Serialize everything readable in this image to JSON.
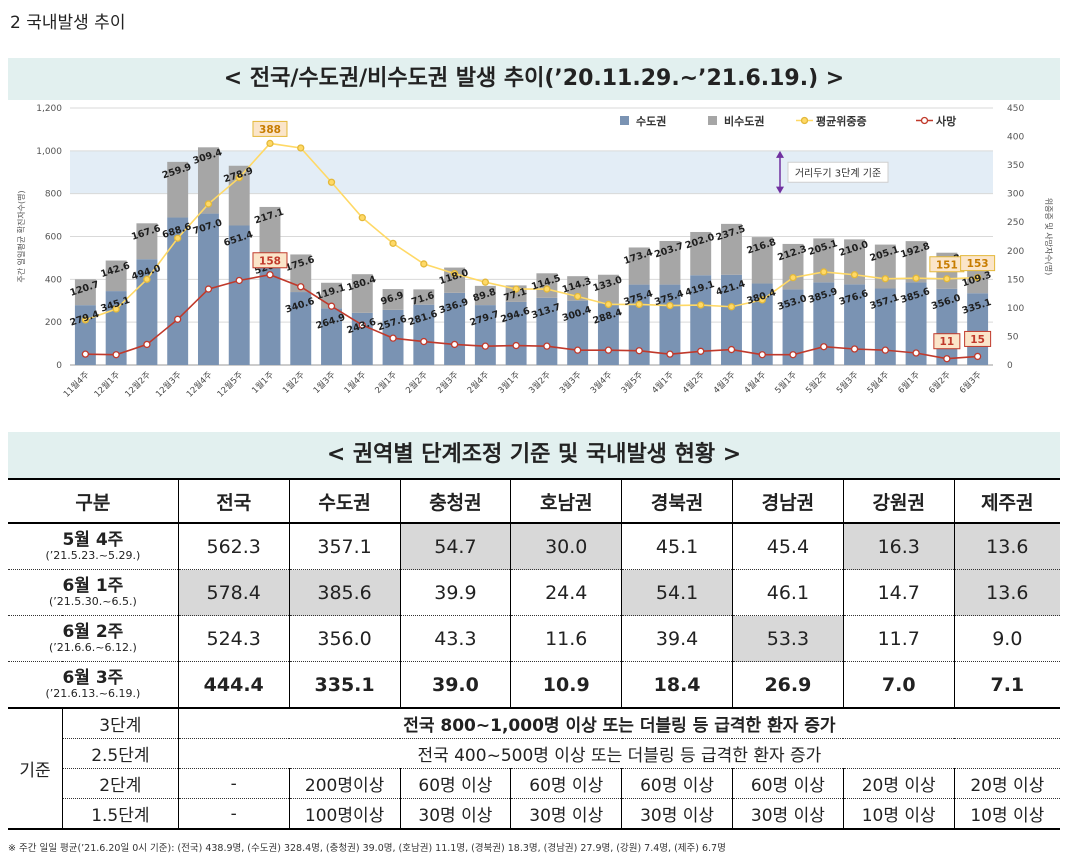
{
  "section_title": "2  국내발생 추이",
  "chart_banner": "< 전국/수도권/비수도권 발생 추이(’20.11.29.~’21.6.19.) >",
  "colors": {
    "capital": "#7a93b3",
    "noncapital": "#a6a6a6",
    "critical": "#ffd966",
    "death": "#c0392b",
    "band": "#e3edf6",
    "banner": "#e2f0ef",
    "callout": "#fbe5c9"
  },
  "chart_data": {
    "type": "bar",
    "stacked": true,
    "categories": [
      "11월4주",
      "12월1주",
      "12월2주",
      "12월3주",
      "12월4주",
      "12월5주",
      "1월1주",
      "1월2주",
      "1월3주",
      "1월4주",
      "2월1주",
      "2월2주",
      "2월3주",
      "2월4주",
      "3월1주",
      "3월2주",
      "3월3주",
      "3월4주",
      "3월5주",
      "4월1주",
      "4월2주",
      "4월3주",
      "4월4주",
      "5월1주",
      "5월2주",
      "5월3주",
      "5월4주",
      "6월1주",
      "6월2주",
      "6월3주"
    ],
    "series": [
      {
        "name": "수도권",
        "type": "bar",
        "axis": "left",
        "values": [
          279.4,
          345.1,
          494.0,
          688.6,
          707.0,
          651.4,
          520.9,
          340.6,
          264.9,
          243.6,
          257.6,
          281.6,
          336.9,
          279.7,
          294.6,
          313.7,
          300.4,
          288.4,
          375.4,
          375.4,
          419.1,
          421.4,
          380.4,
          353.0,
          385.9,
          376.6,
          357.1,
          385.6,
          356.0,
          335.1
        ]
      },
      {
        "name": "비수도권",
        "type": "bar",
        "axis": "left",
        "values": [
          120.7,
          142.6,
          167.6,
          259.9,
          309.4,
          278.9,
          217.1,
          175.6,
          119.1,
          180.4,
          96.9,
          71.6,
          118.0,
          89.8,
          77.1,
          114.5,
          114.3,
          133.0,
          173.4,
          203.7,
          202.0,
          237.5,
          216.8,
          212.3,
          205.1,
          210.0,
          205.1,
          192.8,
          168.3,
          109.3
        ]
      },
      {
        "name": "평균위중증",
        "type": "line",
        "axis": "right",
        "values": [
          79,
          98,
          150,
          222,
          282,
          328,
          388,
          380,
          320,
          258,
          213,
          177,
          160,
          145,
          133,
          133,
          120,
          106,
          106,
          104,
          105,
          102,
          114,
          153,
          163,
          158,
          151,
          152,
          151,
          153
        ]
      },
      {
        "name": "사망",
        "type": "line",
        "axis": "right",
        "values": [
          19,
          18,
          36,
          80,
          133,
          148,
          158,
          137,
          103,
          70,
          47,
          41,
          36,
          33,
          34,
          33,
          26,
          26,
          25,
          19,
          24,
          27,
          18,
          18,
          32,
          28,
          26,
          21,
          11,
          15
        ]
      }
    ],
    "ylabel": "주간 일일평균 확진자수(명)",
    "ylabel_right": "위중증 및 사망자수(명)",
    "ylim": [
      0,
      1200
    ],
    "yticks": [
      "0",
      "200",
      "400",
      "600",
      "800",
      "1,000",
      "1,200"
    ],
    "ylim_right": [
      0,
      450
    ],
    "yticks_right": [
      "0",
      "50",
      "100",
      "150",
      "200",
      "250",
      "300",
      "350",
      "400",
      "450"
    ],
    "reference_band": {
      "from": 800,
      "to": 1000,
      "label": "거리두기 3단계 기준"
    },
    "callouts": [
      {
        "series": "평균위중증",
        "index": 6,
        "label": "388"
      },
      {
        "series": "사망",
        "index": 6,
        "label": "158"
      },
      {
        "series": "평균위중증",
        "index": 28,
        "label": "151"
      },
      {
        "series": "평균위중증",
        "index": 29,
        "label": "153"
      },
      {
        "series": "사망",
        "index": 28,
        "label": "11"
      },
      {
        "series": "사망",
        "index": 29,
        "label": "15"
      }
    ],
    "legend": [
      "수도권",
      "비수도권",
      "평균위중증",
      "사망"
    ],
    "legend_position": "top-right"
  },
  "table_banner": "< 권역별 단계조정 기준 및 국내발생 현황 >",
  "table": {
    "headers": [
      "구분",
      "전국",
      "수도권",
      "충청권",
      "호남권",
      "경북권",
      "경남권",
      "강원권",
      "제주권"
    ],
    "rows": [
      {
        "week": "5월 4주",
        "range": "(’21.5.23.~5.29.)",
        "values": [
          "562.3",
          "357.1",
          "54.7",
          "30.0",
          "45.1",
          "45.4",
          "16.3",
          "13.6"
        ]
      },
      {
        "week": "6월 1주",
        "range": "(’21.5.30.~6.5.)",
        "values": [
          "578.4",
          "385.6",
          "39.9",
          "24.4",
          "54.1",
          "46.1",
          "14.7",
          "13.6"
        ]
      },
      {
        "week": "6월 2주",
        "range": "(’21.6.6.~6.12.)",
        "values": [
          "524.3",
          "356.0",
          "43.3",
          "11.6",
          "39.4",
          "53.3",
          "11.7",
          "9.0"
        ]
      },
      {
        "week": "6월 3주",
        "range": "(’21.6.13.~6.19.)",
        "values": [
          "444.4",
          "335.1",
          "39.0",
          "10.9",
          "18.4",
          "26.9",
          "7.0",
          "7.1"
        ]
      }
    ],
    "criteria_label": "기준",
    "criteria": [
      {
        "level": "3단계",
        "text": "전국 800~1,000명 이상 또는 더블링 등 급격한 환자 증가"
      },
      {
        "level": "2.5단계",
        "text": "전국 400~500명 이상 또는 더블링 등 급격한 환자 증가"
      },
      {
        "level": "2단계",
        "values": [
          "-",
          "200명이상",
          "60명 이상",
          "60명 이상",
          "60명 이상",
          "60명 이상",
          "20명 이상",
          "20명 이상"
        ]
      },
      {
        "level": "1.5단계",
        "values": [
          "-",
          "100명이상",
          "30명 이상",
          "30명 이상",
          "30명 이상",
          "30명 이상",
          "10명 이상",
          "10명 이상"
        ]
      }
    ]
  },
  "footnote": "※ 주간 일일 평균(’21.6.20일 0시 기준): (전국) 438.9명, (수도권) 328.4명, (충청권) 39.0명, (호남권) 11.1명, (경북권) 18.3명, (경남권) 27.9명, (강원) 7.4명, (제주) 6.7명"
}
